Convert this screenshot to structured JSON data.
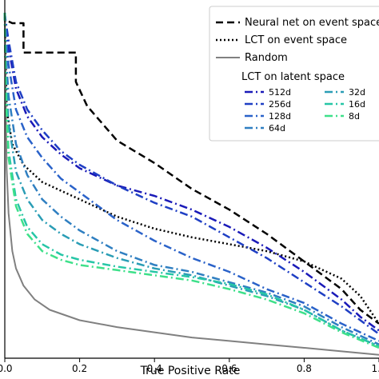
{
  "chart_data": {
    "type": "line",
    "title": "",
    "xlabel": "True Positive Rate",
    "ylabel": "",
    "xlim": [
      0,
      1
    ],
    "ylim": [
      0,
      1
    ],
    "grid": false,
    "legend_placement": "top-right",
    "x_ticks": [
      "0.0",
      "0.2",
      "0.4",
      "0.6",
      "0.8",
      "1.0"
    ],
    "legend_subheading": "LCT on latent space",
    "series": [
      {
        "name": "Neural net on event space",
        "color": "#000000",
        "dash": "dashed",
        "width": 2.5,
        "x": [
          0.0,
          0.0,
          0.02,
          0.05,
          0.05,
          0.19,
          0.19,
          0.22,
          0.3,
          0.4,
          0.5,
          0.6,
          0.7,
          0.8,
          0.9,
          0.95,
          1.0
        ],
        "y": [
          1.0,
          0.98,
          0.97,
          0.97,
          0.885,
          0.885,
          0.8,
          0.73,
          0.63,
          0.565,
          0.49,
          0.43,
          0.36,
          0.28,
          0.2,
          0.14,
          0.1
        ]
      },
      {
        "name": "LCT on event space",
        "color": "#000000",
        "dash": "dotted",
        "width": 2.5,
        "x": [
          0.0,
          0.005,
          0.02,
          0.05,
          0.1,
          0.2,
          0.3,
          0.4,
          0.5,
          0.6,
          0.7,
          0.8,
          0.9,
          0.95,
          1.0
        ],
        "y": [
          1.0,
          0.72,
          0.62,
          0.56,
          0.51,
          0.46,
          0.41,
          0.375,
          0.35,
          0.33,
          0.31,
          0.28,
          0.23,
          0.18,
          0.1
        ]
      },
      {
        "name": "Random",
        "color": "#808080",
        "dash": "solid",
        "width": 2,
        "x": [
          0.0,
          0.005,
          0.01,
          0.02,
          0.03,
          0.05,
          0.08,
          0.12,
          0.2,
          0.3,
          0.4,
          0.5,
          0.6,
          0.7,
          0.8,
          0.9,
          1.0
        ],
        "y": [
          1.0,
          0.55,
          0.42,
          0.31,
          0.26,
          0.21,
          0.17,
          0.14,
          0.11,
          0.09,
          0.075,
          0.06,
          0.05,
          0.04,
          0.03,
          0.02,
          0.01
        ]
      },
      {
        "name": "512d",
        "color": "#1a1ab8",
        "dash": "dashdot",
        "width": 2.5,
        "x": [
          0.0,
          0.002,
          0.01,
          0.03,
          0.06,
          0.1,
          0.15,
          0.2,
          0.3,
          0.4,
          0.5,
          0.6,
          0.7,
          0.8,
          0.9,
          0.95,
          1.0
        ],
        "y": [
          1.0,
          0.97,
          0.9,
          0.78,
          0.7,
          0.64,
          0.59,
          0.55,
          0.5,
          0.47,
          0.43,
          0.38,
          0.32,
          0.25,
          0.17,
          0.12,
          0.08
        ]
      },
      {
        "name": "256d",
        "color": "#1f3fc4",
        "dash": "dashdot",
        "width": 2.5,
        "x": [
          0.0,
          0.002,
          0.01,
          0.03,
          0.06,
          0.1,
          0.15,
          0.2,
          0.3,
          0.4,
          0.5,
          0.6,
          0.7,
          0.8,
          0.9,
          1.0
        ],
        "y": [
          1.0,
          0.98,
          0.92,
          0.8,
          0.72,
          0.66,
          0.6,
          0.56,
          0.5,
          0.45,
          0.41,
          0.35,
          0.29,
          0.22,
          0.15,
          0.07
        ]
      },
      {
        "name": "128d",
        "color": "#2a62c9",
        "dash": "dashdot",
        "width": 2.5,
        "x": [
          0.0,
          0.002,
          0.01,
          0.03,
          0.06,
          0.1,
          0.15,
          0.2,
          0.3,
          0.4,
          0.5,
          0.6,
          0.7,
          0.8,
          0.9,
          1.0
        ],
        "y": [
          1.0,
          0.95,
          0.85,
          0.72,
          0.64,
          0.58,
          0.52,
          0.48,
          0.4,
          0.34,
          0.29,
          0.25,
          0.2,
          0.16,
          0.1,
          0.05
        ]
      },
      {
        "name": "64d",
        "color": "#2f7fc1",
        "dash": "dashdot",
        "width": 2.5,
        "x": [
          0.0,
          0.002,
          0.01,
          0.03,
          0.06,
          0.1,
          0.15,
          0.2,
          0.3,
          0.4,
          0.5,
          0.6,
          0.7,
          0.8,
          0.9,
          1.0
        ],
        "y": [
          1.0,
          0.9,
          0.76,
          0.62,
          0.53,
          0.46,
          0.41,
          0.37,
          0.31,
          0.27,
          0.25,
          0.22,
          0.19,
          0.15,
          0.09,
          0.04
        ]
      },
      {
        "name": "32d",
        "color": "#2a9db5",
        "dash": "dashdot",
        "width": 2.5,
        "x": [
          0.0,
          0.002,
          0.01,
          0.03,
          0.06,
          0.1,
          0.15,
          0.2,
          0.3,
          0.4,
          0.5,
          0.6,
          0.7,
          0.8,
          0.9,
          1.0
        ],
        "y": [
          1.0,
          0.85,
          0.68,
          0.54,
          0.46,
          0.4,
          0.36,
          0.33,
          0.29,
          0.26,
          0.24,
          0.21,
          0.18,
          0.14,
          0.08,
          0.035
        ]
      },
      {
        "name": "16d",
        "color": "#26c6a6",
        "dash": "dashdot",
        "width": 2.5,
        "x": [
          0.0,
          0.002,
          0.01,
          0.03,
          0.06,
          0.1,
          0.15,
          0.2,
          0.3,
          0.4,
          0.5,
          0.6,
          0.7,
          0.8,
          0.9,
          1.0
        ],
        "y": [
          1.0,
          0.8,
          0.6,
          0.46,
          0.38,
          0.33,
          0.3,
          0.285,
          0.265,
          0.25,
          0.235,
          0.215,
          0.185,
          0.14,
          0.08,
          0.035
        ]
      },
      {
        "name": "8d",
        "color": "#3ee08a",
        "dash": "dashdot",
        "width": 2.5,
        "x": [
          0.0,
          0.002,
          0.01,
          0.03,
          0.06,
          0.1,
          0.15,
          0.2,
          0.3,
          0.4,
          0.5,
          0.6,
          0.7,
          0.8,
          0.9,
          1.0
        ],
        "y": [
          1.0,
          0.78,
          0.58,
          0.44,
          0.36,
          0.31,
          0.285,
          0.27,
          0.255,
          0.24,
          0.225,
          0.2,
          0.17,
          0.13,
          0.075,
          0.03
        ]
      }
    ]
  }
}
